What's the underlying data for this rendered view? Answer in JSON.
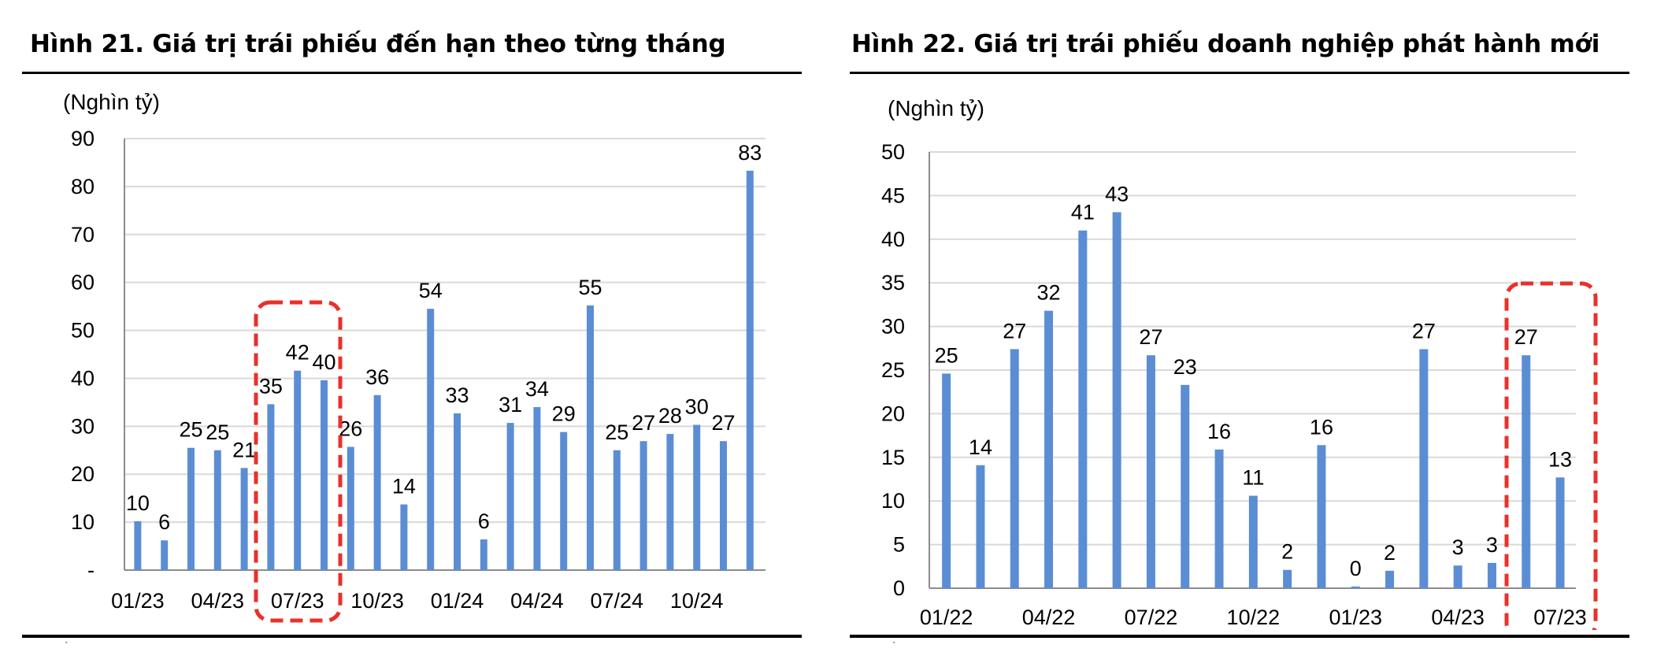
{
  "charts": [
    {
      "title": "Hình 21. Giá trị trái phiếu đến hạn theo từng tháng",
      "unit": "(Nghìn tỷ)",
      "footer_mark": "`",
      "chart_data": {
        "type": "bar",
        "unit": "(Nghìn tỷ)",
        "ylim": [
          0,
          90
        ],
        "yticks": [
          "-",
          "10",
          "20",
          "30",
          "40",
          "50",
          "60",
          "70",
          "80",
          "90"
        ],
        "x_tick_labels": [
          "01/23",
          "04/23",
          "07/23",
          "10/23",
          "01/24",
          "04/24",
          "07/24",
          "10/24"
        ],
        "categories": [
          "01/23",
          "02/23",
          "03/23",
          "04/23",
          "05/23",
          "06/23",
          "07/23",
          "08/23",
          "09/23",
          "10/23",
          "11/23",
          "12/23",
          "01/24",
          "02/24",
          "03/24",
          "04/24",
          "05/24",
          "06/24",
          "07/24",
          "08/24",
          "09/24",
          "10/24",
          "11/24",
          "12/24"
        ],
        "values": [
          10,
          6,
          25,
          25,
          21,
          35,
          42,
          40,
          26,
          36,
          14,
          54,
          33,
          6,
          31,
          34,
          29,
          55,
          25,
          27,
          28,
          30,
          27,
          83
        ],
        "value_labels": [
          "10",
          "6",
          "25",
          "25",
          "21",
          "35",
          "42",
          "40",
          "26",
          "36",
          "14",
          "54",
          "33",
          "6",
          "31",
          "34",
          "29",
          "55",
          "25",
          "27",
          "28",
          "30",
          "27",
          "83"
        ],
        "bar_values": [
          10.2,
          6.2,
          25.5,
          25.0,
          21.3,
          34.6,
          41.6,
          39.6,
          25.7,
          36.5,
          13.7,
          54.5,
          32.7,
          6.4,
          30.7,
          34.0,
          28.8,
          55.2,
          25.0,
          26.9,
          28.4,
          30.3,
          26.9,
          83.3
        ],
        "highlight": {
          "from_index": 5,
          "to_index": 7
        },
        "bar_color": "#5b8dd4",
        "highlight_color": "#e8312a",
        "grid": true
      }
    },
    {
      "title": "Hình 22. Giá trị trái phiếu doanh nghiệp phát hành mới",
      "unit": "(Nghìn tỷ)",
      "footer_mark": "`",
      "chart_data": {
        "type": "bar",
        "unit": "(Nghìn tỷ)",
        "ylim": [
          0,
          50
        ],
        "yticks": [
          "0",
          "5",
          "10",
          "15",
          "20",
          "25",
          "30",
          "35",
          "40",
          "45",
          "50"
        ],
        "x_tick_labels": [
          "01/22",
          "04/22",
          "07/22",
          "10/22",
          "01/23",
          "04/23",
          "07/23"
        ],
        "categories": [
          "01/22",
          "02/22",
          "03/22",
          "04/22",
          "05/22",
          "06/22",
          "07/22",
          "08/22",
          "09/22",
          "10/22",
          "11/22",
          "12/22",
          "01/23",
          "02/23",
          "03/23",
          "04/23",
          "05/23",
          "06/23",
          "07/23"
        ],
        "values": [
          25,
          14,
          27,
          32,
          41,
          43,
          27,
          23,
          16,
          11,
          2,
          16,
          0,
          2,
          27,
          3,
          3,
          27,
          13
        ],
        "value_labels": [
          "25",
          "14",
          "27",
          "32",
          "41",
          "43",
          "27",
          "23",
          "16",
          "11",
          "2",
          "16",
          "0",
          "2",
          "27",
          "3",
          "3",
          "27",
          "13"
        ],
        "bar_values": [
          24.6,
          14.1,
          27.4,
          31.8,
          41.0,
          43.1,
          26.7,
          23.3,
          15.9,
          10.6,
          2.1,
          16.4,
          0.2,
          2.0,
          27.4,
          2.6,
          2.9,
          26.7,
          12.7
        ],
        "highlight": {
          "from_index": 17,
          "to_index": 18
        },
        "bar_color": "#5b8dd4",
        "highlight_color": "#e8312a",
        "grid": true
      }
    }
  ]
}
